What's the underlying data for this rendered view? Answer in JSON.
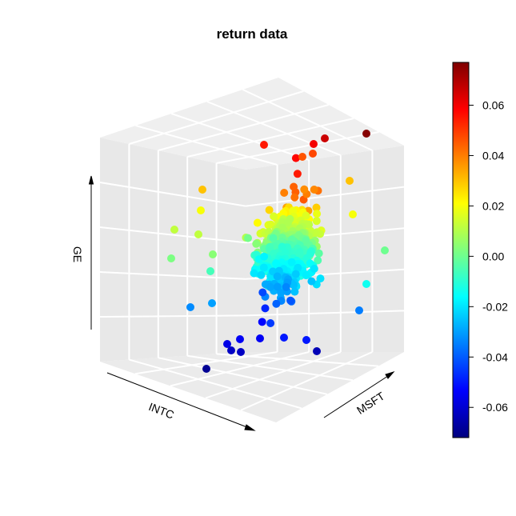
{
  "chart_data": {
    "type": "scatter",
    "dimension": "3d",
    "title": "return data",
    "x_label": "INTC",
    "y_label": "MSFT",
    "z_label": "GE",
    "color_by": "GE",
    "grid": true,
    "panel_color": "#e8e8e8",
    "grid_color": "#ffffff",
    "colorbar": {
      "position": "right",
      "range": [
        -0.072,
        0.077
      ],
      "ticks": [
        -0.06,
        -0.04,
        -0.02,
        0.0,
        0.02,
        0.04,
        0.06
      ],
      "tick_labels": [
        "-0.06",
        "-0.04",
        "-0.02",
        "0.00",
        "0.02",
        "0.04",
        "0.06"
      ],
      "colors": [
        "#00007F",
        "#0000FF",
        "#007FFF",
        "#00FFFF",
        "#7FFF7F",
        "#FFFF00",
        "#FF7F00",
        "#FF0000",
        "#7F0000"
      ]
    },
    "n_points_approx": 1000,
    "notable_points": [
      {
        "ge": 0.076,
        "label": "max"
      },
      {
        "ge": 0.065
      },
      {
        "ge": 0.06
      },
      {
        "ge": 0.055
      },
      {
        "ge": -0.06
      },
      {
        "ge": -0.064
      },
      {
        "ge": -0.069,
        "label": "min"
      }
    ]
  }
}
